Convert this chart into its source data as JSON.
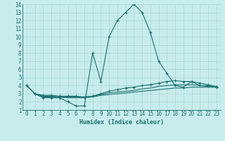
{
  "xlabel": "Humidex (Indice chaleur)",
  "xlim": [
    -0.5,
    23.5
  ],
  "ylim": [
    1,
    14
  ],
  "yticks": [
    1,
    2,
    3,
    4,
    5,
    6,
    7,
    8,
    9,
    10,
    11,
    12,
    13,
    14
  ],
  "xticks": [
    0,
    1,
    2,
    3,
    4,
    5,
    6,
    7,
    8,
    9,
    10,
    11,
    12,
    13,
    14,
    15,
    16,
    17,
    18,
    19,
    20,
    21,
    22,
    23
  ],
  "background_color": "#c8ecec",
  "grid_color": "#a8d8d8",
  "line_color": "#1a7070",
  "lines": [
    {
      "x": [
        0,
        1,
        2,
        3,
        4,
        5,
        6,
        7,
        8,
        9,
        10,
        11,
        12,
        13,
        14,
        15,
        16,
        17,
        18,
        19,
        20,
        21,
        22,
        23
      ],
      "y": [
        4,
        3,
        2.5,
        2.5,
        2.5,
        2,
        1.5,
        1.5,
        8,
        4.5,
        10,
        12,
        13,
        14,
        13,
        10.5,
        7,
        5.5,
        4,
        3.8,
        4.5,
        4,
        4,
        3.8
      ],
      "marker": true
    },
    {
      "x": [
        0,
        1,
        2,
        3,
        4,
        5,
        6,
        7,
        8,
        9,
        10,
        11,
        12,
        13,
        14,
        15,
        16,
        17,
        18,
        19,
        20,
        21,
        22,
        23
      ],
      "y": [
        4,
        3,
        2.8,
        2.8,
        2.7,
        2.7,
        2.7,
        2.6,
        2.7,
        3.0,
        3.3,
        3.5,
        3.7,
        3.8,
        4.0,
        4.1,
        4.3,
        4.5,
        4.6,
        4.5,
        4.5,
        4.3,
        4.1,
        3.9
      ],
      "marker": true
    },
    {
      "x": [
        0,
        1,
        2,
        3,
        4,
        5,
        6,
        7,
        8,
        9,
        10,
        11,
        12,
        13,
        14,
        15,
        16,
        17,
        18,
        19,
        20,
        21,
        22,
        23
      ],
      "y": [
        4,
        3,
        2.7,
        2.7,
        2.6,
        2.6,
        2.6,
        2.6,
        2.7,
        2.9,
        3.1,
        3.2,
        3.3,
        3.4,
        3.6,
        3.7,
        3.9,
        4.0,
        4.1,
        4.1,
        4.1,
        4.0,
        3.9,
        3.8
      ],
      "marker": false
    },
    {
      "x": [
        0,
        1,
        2,
        3,
        4,
        5,
        6,
        7,
        8,
        9,
        10,
        11,
        12,
        13,
        14,
        15,
        16,
        17,
        18,
        19,
        20,
        21,
        22,
        23
      ],
      "y": [
        4,
        3,
        2.6,
        2.6,
        2.6,
        2.5,
        2.5,
        2.5,
        2.6,
        2.8,
        2.9,
        3.0,
        3.1,
        3.2,
        3.3,
        3.4,
        3.5,
        3.6,
        3.7,
        3.7,
        3.8,
        3.8,
        3.8,
        3.8
      ],
      "marker": false
    }
  ]
}
